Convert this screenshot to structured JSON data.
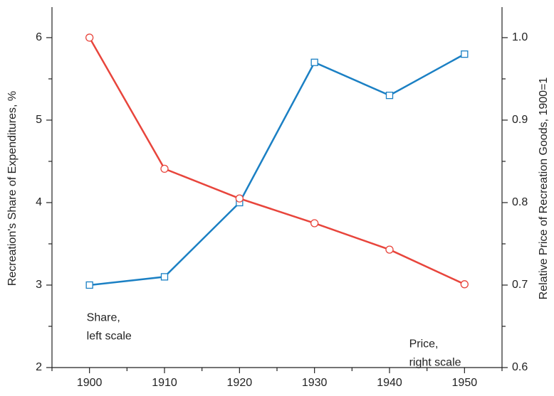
{
  "chart_data": {
    "type": "line",
    "x": [
      1900,
      1910,
      1920,
      1930,
      1940,
      1950
    ],
    "series": [
      {
        "name": "Share",
        "color": "#1b80c4",
        "marker": "square",
        "values": [
          3.0,
          3.1,
          4.0,
          5.7,
          5.3,
          5.8
        ]
      },
      {
        "name": "Price",
        "color": "#e8453c",
        "marker": "circle",
        "axis": "y2",
        "values": [
          1.0,
          0.841,
          0.805,
          0.775,
          0.743,
          0.701
        ]
      }
    ],
    "xlim": [
      1895,
      1955
    ],
    "xticks": [
      1900,
      1910,
      1920,
      1930,
      1940,
      1950
    ],
    "x_minor_ticks": [
      1895,
      1905,
      1915,
      1925,
      1935,
      1945,
      1955
    ],
    "ylim": [
      2,
      6.37
    ],
    "yticks": [
      2,
      3,
      4,
      5,
      6
    ],
    "y_minor_ticks": [
      2.5,
      3.5,
      4.5,
      5.5
    ],
    "y2lim": [
      0.6,
      1.037
    ],
    "y2ticks": [
      0.6,
      0.7,
      0.8,
      0.9,
      {
        "value": 1,
        "label": "1.0"
      }
    ],
    "y2_minor_ticks": [
      0.65,
      0.75,
      0.85,
      0.95
    ],
    "ylabel": "Recreation's Share of Expenditures, %",
    "y2label": "Relative Price of Recreation Goods, 1900=1",
    "annotations": [
      {
        "x": 1900,
        "y": 2.6,
        "lines": [
          "Share,",
          "left scale"
        ]
      },
      {
        "x": 1943,
        "y": 2.28,
        "lines": [
          "Price,",
          "right scale"
        ]
      }
    ]
  }
}
